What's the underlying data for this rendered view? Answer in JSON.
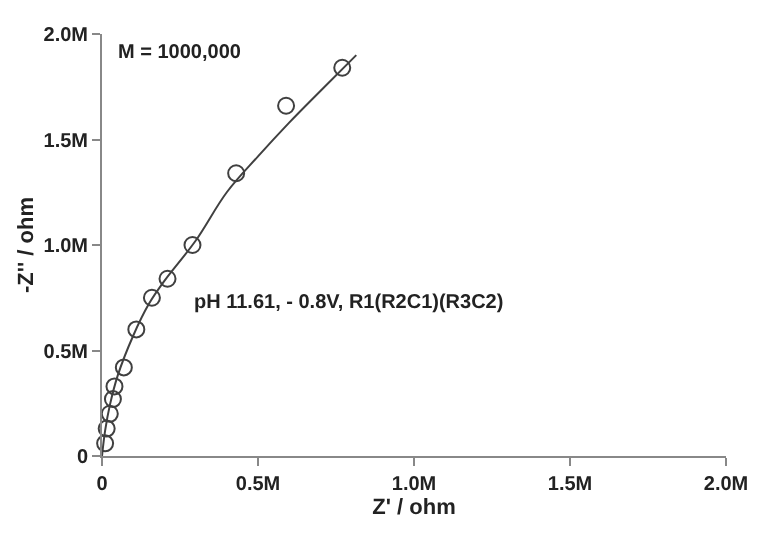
{
  "chart_data": {
    "type": "scatter",
    "xlabel": "Z' / ohm",
    "ylabel": "-Z'' / ohm",
    "xlim": [
      0,
      2000000
    ],
    "ylim": [
      0,
      2000000
    ],
    "xticks": [
      {
        "value": 0,
        "label": "0"
      },
      {
        "value": 500000,
        "label": "0.5M"
      },
      {
        "value": 1000000,
        "label": "1.0M"
      },
      {
        "value": 1500000,
        "label": "1.5M"
      },
      {
        "value": 2000000,
        "label": "2.0M"
      }
    ],
    "yticks": [
      {
        "value": 0,
        "label": "0"
      },
      {
        "value": 500000,
        "label": "0.5M"
      },
      {
        "value": 1000000,
        "label": "1.0M"
      },
      {
        "value": 1500000,
        "label": "1.5M"
      },
      {
        "value": 2000000,
        "label": "2.0M"
      }
    ],
    "grid": false,
    "marker": "circle",
    "series": [
      {
        "color": "#404040",
        "x": [
          10000,
          15000,
          25000,
          35000,
          40000,
          70000,
          110000,
          160000,
          210000,
          290000,
          430000,
          590000,
          770000
        ],
        "values": [
          60000,
          130000,
          200000,
          270000,
          330000,
          420000,
          600000,
          750000,
          840000,
          1000000,
          1340000,
          1660000,
          1840000
        ]
      },
      {
        "type": "line",
        "marker": "none",
        "color": "#404040",
        "x": [
          0,
          10000,
          25000,
          50000,
          100000,
          150000,
          200000,
          300000,
          400000,
          500000,
          600000,
          700000,
          815000
        ],
        "values": [
          0,
          120000,
          240000,
          380000,
          570000,
          720000,
          830000,
          1020000,
          1250000,
          1420000,
          1580000,
          1730000,
          1900000
        ]
      }
    ],
    "annotations": [
      {
        "text": "M = 1000,000"
      },
      {
        "text": "pH 11.61, - 0.8V, R1(R2C1)(R3C2)"
      }
    ]
  }
}
